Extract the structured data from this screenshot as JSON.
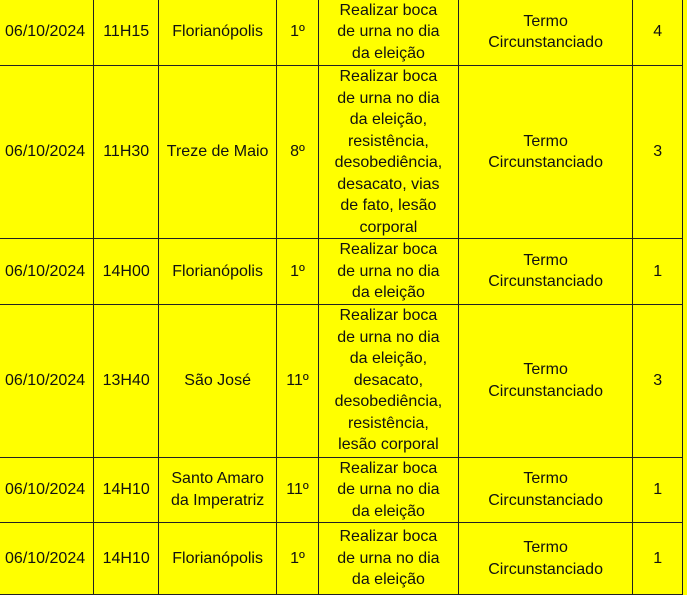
{
  "rows": [
    {
      "date": "06/10/2024",
      "time": "11H15",
      "city": "Florianópolis",
      "zone": "1º",
      "crime": "Realizar boca de urna no dia da eleição",
      "procedure": "Termo Circunstanciado",
      "count": "4"
    },
    {
      "date": "06/10/2024",
      "time": "11H30",
      "city": "Treze de Maio",
      "zone": "8º",
      "crime": "Realizar boca de urna no dia da eleição, resistência, desobediência, desacato, vias de fato, lesão corporal",
      "procedure": "Termo Circunstanciado",
      "count": "3"
    },
    {
      "date": "06/10/2024",
      "time": "14H00",
      "city": "Florianópolis",
      "zone": "1º",
      "crime": "Realizar boca de urna no dia da eleição",
      "procedure": "Termo Circunstanciado",
      "count": "1"
    },
    {
      "date": "06/10/2024",
      "time": "13H40",
      "city": "São José",
      "zone": "11º",
      "crime": "Realizar boca de urna no dia da eleição, desacato, desobediência, resistência, lesão corporal",
      "procedure": "Termo Circunstanciado",
      "count": "3"
    },
    {
      "date": "06/10/2024",
      "time": "14H10",
      "city": "Santo Amaro da Imperatriz",
      "zone": "11º",
      "crime": "Realizar boca de urna no dia da eleição",
      "procedure": "Termo Circunstanciado",
      "count": "1"
    },
    {
      "date": "06/10/2024",
      "time": "14H10",
      "city": "Florianópolis",
      "zone": "1º",
      "crime": "Realizar boca de urna no dia da eleição",
      "procedure": "Termo Circunstanciado",
      "count": "1"
    }
  ]
}
